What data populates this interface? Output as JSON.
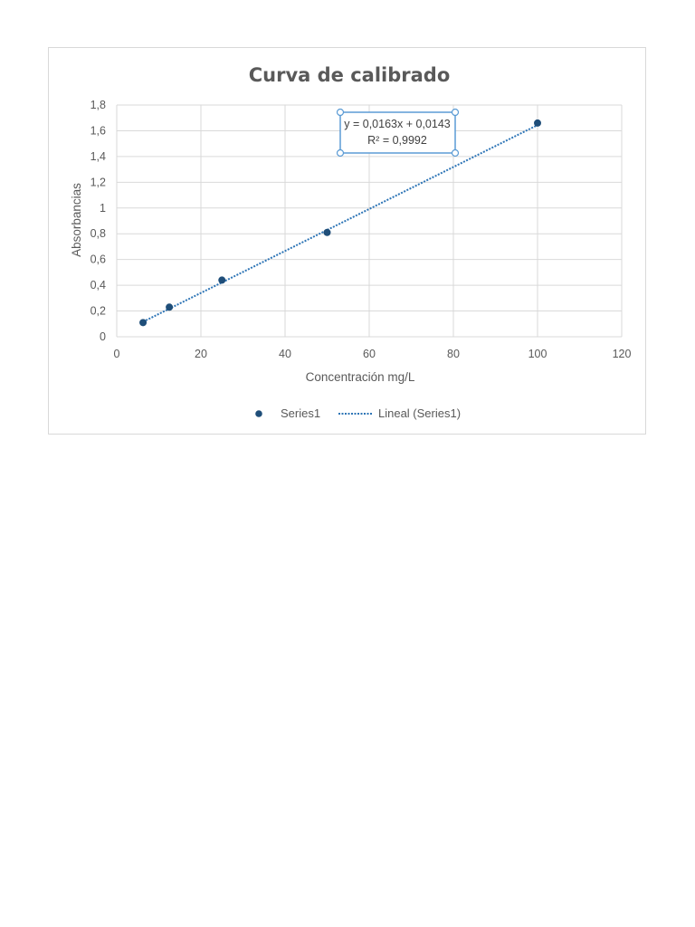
{
  "chart_data": {
    "type": "scatter",
    "title": "Curva de calibrado",
    "xlabel": "Concentración mg/L",
    "ylabel": "Absorbancias",
    "xlim": [
      0,
      120
    ],
    "ylim": [
      0,
      1.8
    ],
    "x_ticks": [
      "0",
      "20",
      "40",
      "60",
      "80",
      "100",
      "120"
    ],
    "y_ticks": [
      "0",
      "0,2",
      "0,4",
      "0,6",
      "0,8",
      "1",
      "1,2",
      "1,4",
      "1,6",
      "1,8"
    ],
    "grid": true,
    "legend_position": "bottom",
    "series": [
      {
        "name": "Series1",
        "x": [
          6.25,
          12.5,
          25,
          50,
          100
        ],
        "y": [
          0.11,
          0.23,
          0.44,
          0.81,
          1.66
        ]
      }
    ],
    "trendline": {
      "name": "Lineal (Series1)",
      "slope": 0.0163,
      "intercept": 0.0143,
      "equation": "y = 0,0163x + 0,0143",
      "r2": "R² = 0,9992"
    },
    "colors": {
      "points": "#1f4e79",
      "trendline": "#2e75b6",
      "grid": "#d9d9d9",
      "text": "#595959",
      "label_box": "#5b9bd5"
    }
  }
}
